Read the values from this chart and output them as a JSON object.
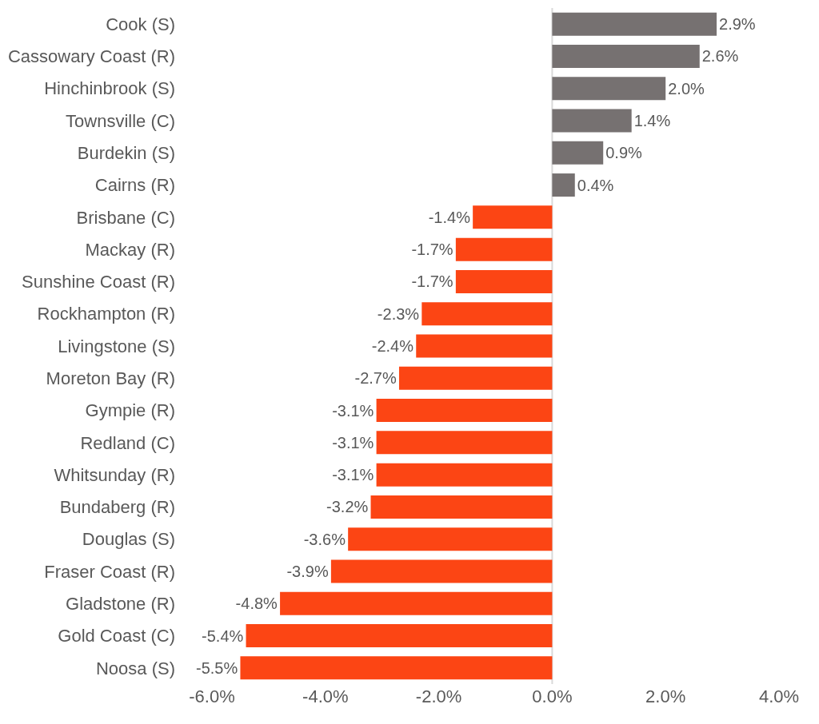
{
  "chart_data": {
    "type": "bar",
    "orientation": "horizontal",
    "categories": [
      "Cook (S)",
      "Cassowary Coast (R)",
      "Hinchinbrook (S)",
      "Townsville (C)",
      "Burdekin (S)",
      "Cairns (R)",
      "Brisbane (C)",
      "Mackay (R)",
      "Sunshine Coast (R)",
      "Rockhampton (R)",
      "Livingstone (S)",
      "Moreton Bay (R)",
      "Gympie (R)",
      "Redland (C)",
      "Whitsunday (R)",
      "Bundaberg (R)",
      "Douglas (S)",
      "Fraser Coast (R)",
      "Gladstone (R)",
      "Gold Coast (C)",
      "Noosa (S)"
    ],
    "values": [
      2.9,
      2.6,
      2.0,
      1.4,
      0.9,
      0.4,
      -1.4,
      -1.7,
      -1.7,
      -2.3,
      -2.4,
      -2.7,
      -3.1,
      -3.1,
      -3.1,
      -3.2,
      -3.6,
      -3.9,
      -4.8,
      -5.4,
      -5.5
    ],
    "value_labels": [
      "2.9%",
      "2.6%",
      "2.0%",
      "1.4%",
      "0.9%",
      "0.4%",
      "-1.4%",
      "-1.7%",
      "-1.7%",
      "-2.3%",
      "-2.4%",
      "-2.7%",
      "-3.1%",
      "-3.1%",
      "-3.1%",
      "-3.2%",
      "-3.6%",
      "-3.9%",
      "-4.8%",
      "-5.4%",
      "-5.5%"
    ],
    "colors": [
      "#767171",
      "#767171",
      "#767171",
      "#767171",
      "#767171",
      "#767171",
      "#fc4514",
      "#fc4514",
      "#fc4514",
      "#fc4514",
      "#fc4514",
      "#fc4514",
      "#fc4514",
      "#fc4514",
      "#fc4514",
      "#fc4514",
      "#fc4514",
      "#fc4514",
      "#fc4514",
      "#fc4514",
      "#fc4514"
    ],
    "xlim": [
      -6,
      4
    ],
    "xticks": [
      {
        "value": -6,
        "label": "-6.0%"
      },
      {
        "value": -4,
        "label": "-4.0%"
      },
      {
        "value": -2,
        "label": "-2.0%"
      },
      {
        "value": 0,
        "label": "0.0%"
      },
      {
        "value": 2,
        "label": "2.0%"
      },
      {
        "value": 4,
        "label": "4.0%"
      }
    ],
    "ref_lines": [
      {
        "axis": "x",
        "value": 0,
        "color": "#d9d9d9"
      }
    ]
  }
}
